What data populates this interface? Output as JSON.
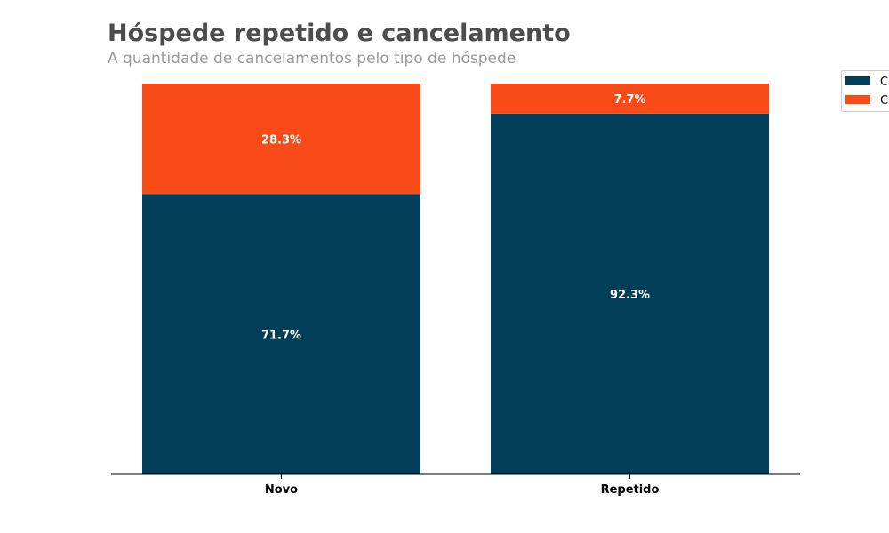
{
  "chart_data": {
    "type": "bar",
    "stacked": true,
    "normalized_percent": true,
    "title": "Hóspede repetido e cancelamento",
    "subtitle": "A quantidade de cancelamentos pelo tipo de hóspede",
    "xlabel": "",
    "ylabel": "",
    "categories": [
      "Novo",
      "Repetido"
    ],
    "ylim": [
      0,
      100
    ],
    "grid": false,
    "legend_placement": "top-right",
    "series": [
      {
        "name": "C",
        "color": "#023e5a",
        "values": [
          71.7,
          92.3
        ],
        "labels": [
          "71.7%",
          "92.3%"
        ]
      },
      {
        "name": "C",
        "color": "#f84b17",
        "values": [
          28.3,
          7.7
        ],
        "labels": [
          "28.3%",
          "7.7%"
        ]
      }
    ]
  }
}
